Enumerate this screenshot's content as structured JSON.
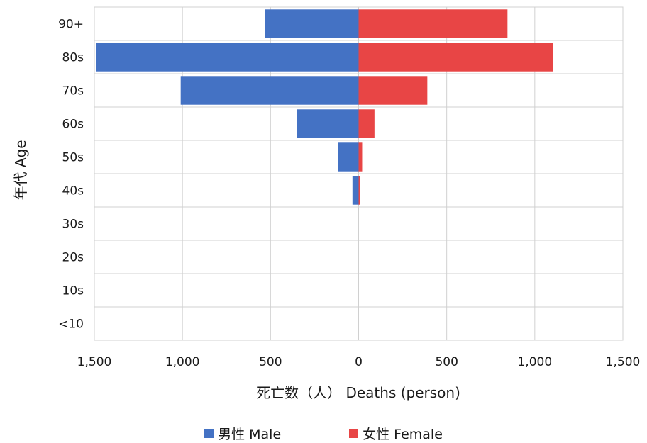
{
  "chart_data": {
    "type": "bar",
    "orientation": "horizontal",
    "layout": "population-pyramid",
    "categories": [
      "90+",
      "80s",
      "70s",
      "60s",
      "50s",
      "40s",
      "30s",
      "20s",
      "10s",
      "<10"
    ],
    "series": [
      {
        "name": "男性 Male",
        "color": "#4472C4",
        "side": "left",
        "values": [
          530,
          1490,
          1010,
          350,
          115,
          35,
          0,
          0,
          0,
          0
        ]
      },
      {
        "name": "女性 Female",
        "color": "#E84545",
        "side": "right",
        "values": [
          845,
          1105,
          390,
          90,
          20,
          10,
          0,
          0,
          0,
          0
        ]
      }
    ],
    "xlim": [
      -1500,
      1500
    ],
    "xticks": [
      -1500,
      -1000,
      -500,
      0,
      500,
      1000,
      1500
    ],
    "xtick_labels": [
      "1,500",
      "1,000",
      "500",
      "0",
      "500",
      "1,000",
      "1,500"
    ],
    "xlabel": "死亡数（人） Deaths (person)",
    "ylabel": "年代 Age",
    "grid": true,
    "legend_position": "bottom"
  }
}
